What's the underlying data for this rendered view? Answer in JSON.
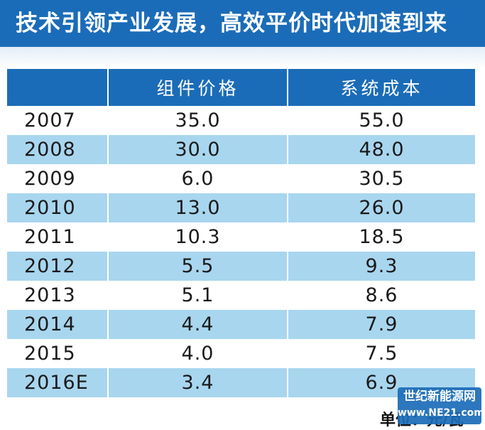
{
  "title": "技术引领产业发展，高效平价时代加速到来",
  "table": {
    "headers": [
      "",
      "组件价格",
      "系统成本"
    ],
    "rows": [
      {
        "year": "2007",
        "module_price": "35.0",
        "system_cost": "55.0"
      },
      {
        "year": "2008",
        "module_price": "30.0",
        "system_cost": "48.0"
      },
      {
        "year": "2009",
        "module_price": "6.0",
        "system_cost": "30.5"
      },
      {
        "year": "2010",
        "module_price": "13.0",
        "system_cost": "26.0"
      },
      {
        "year": "2011",
        "module_price": "10.3",
        "system_cost": "18.5"
      },
      {
        "year": "2012",
        "module_price": "5.5",
        "system_cost": "9.3"
      },
      {
        "year": "2013",
        "module_price": "5.1",
        "system_cost": "8.6"
      },
      {
        "year": "2014",
        "module_price": "4.4",
        "system_cost": "7.9"
      },
      {
        "year": "2015",
        "module_price": "4.0",
        "system_cost": "7.5"
      },
      {
        "year": "2016E",
        "module_price": "3.4",
        "system_cost": "6.9"
      }
    ]
  },
  "unit_note": "单位：元/瓦",
  "watermark": {
    "name": "世纪新能源网",
    "url": "www.NE21.com"
  },
  "colors": {
    "banner": "#1b6cb8",
    "row_alt": "#a8d6ef"
  }
}
